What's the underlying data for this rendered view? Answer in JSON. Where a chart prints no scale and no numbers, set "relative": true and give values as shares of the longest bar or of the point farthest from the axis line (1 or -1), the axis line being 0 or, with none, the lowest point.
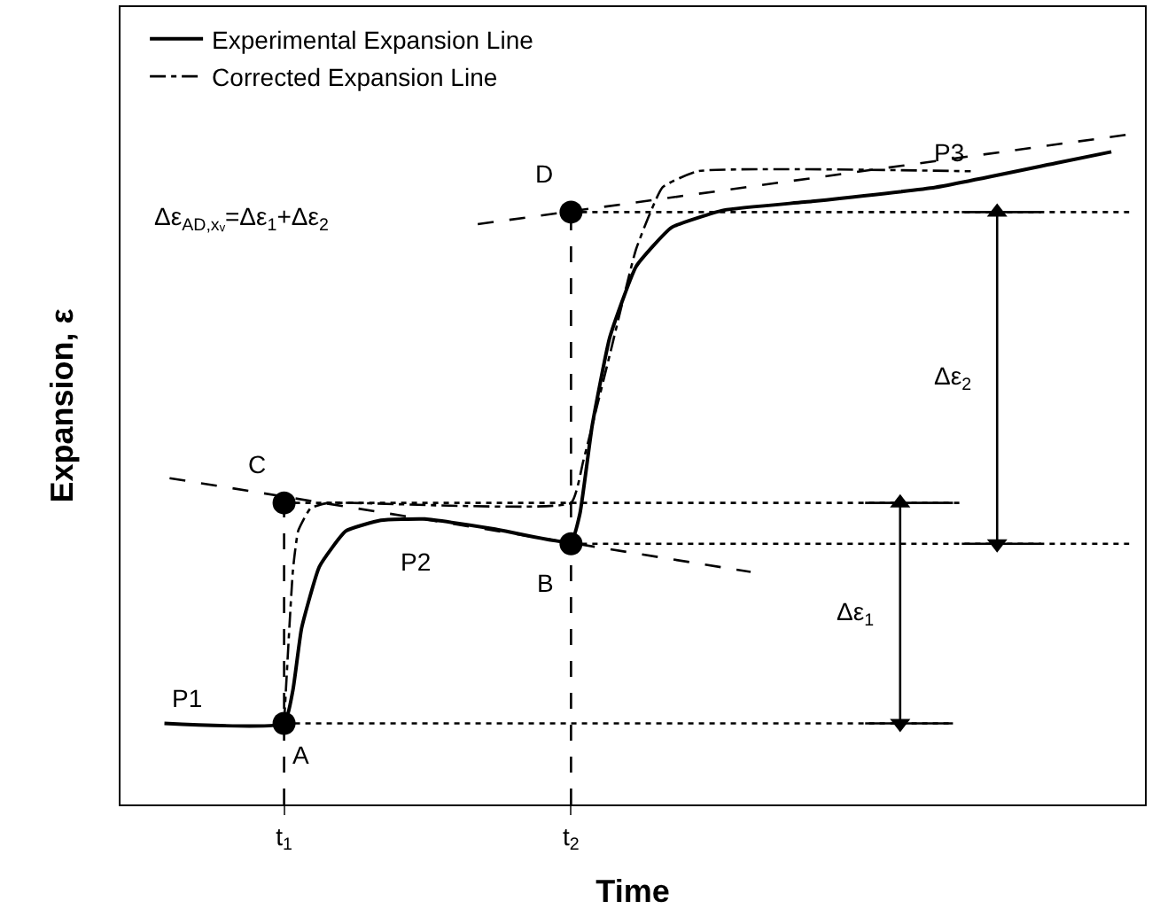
{
  "chart_data": {
    "type": "line",
    "relative": true,
    "xlabel": "Time",
    "ylabel": "Expansion, ε",
    "xlim": [
      0.43,
      4.0
    ],
    "xticks": [
      {
        "value": 1,
        "label": "t$_{1}$"
      },
      {
        "value": 2,
        "label": "t$_{2}$"
      }
    ],
    "tick_labels": "x",
    "legend": "top left",
    "series": [
      {
        "name": "Experimental Expansion Line",
        "color": "#000000",
        "line_style": "solid",
        "x": [
          0.583,
          1.0,
          1.031,
          1.061,
          1.123,
          1.215,
          1.337,
          1.491,
          1.736,
          2.0,
          2.031,
          2.074,
          2.135,
          2.227,
          2.35,
          2.534,
          2.84,
          3.27,
          3.699,
          3.883
        ],
        "values": [
          0.121,
          0.121,
          0.171,
          0.263,
          0.355,
          0.408,
          0.424,
          0.426,
          0.411,
          0.392,
          0.434,
          0.566,
          0.697,
          0.803,
          0.861,
          0.887,
          0.9,
          0.921,
          0.958,
          0.974
        ]
      },
      {
        "name": "Corrected Expansion Line",
        "color": "#000000",
        "line_style": "dashdot",
        "x": [
          1.0,
          1.031,
          1.049,
          1.092,
          1.153,
          2.0,
          2.043,
          2.135,
          2.227,
          2.319,
          2.442,
          3.393
        ],
        "values": [
          0.121,
          0.35,
          0.408,
          0.442,
          0.45,
          0.45,
          0.513,
          0.671,
          0.829,
          0.921,
          0.945,
          0.945
        ]
      },
      {
        "color": "#000000",
        "line_style": "dashed",
        "x": [
          0.601,
          2.626
        ],
        "values": [
          0.487,
          0.347
        ]
      },
      {
        "color": "#000000",
        "line_style": "dashed",
        "x": [
          1.675,
          3.945
        ],
        "values": [
          0.866,
          1.0
        ]
      },
      {
        "color": "#000000",
        "line_style": "dashed",
        "x": [
          1.0,
          1.0
        ],
        "values": [
          0,
          0.45
        ]
      },
      {
        "color": "#000000",
        "line_style": "dashed",
        "x": [
          2.0,
          2.0
        ],
        "values": [
          0,
          0.884
        ]
      },
      {
        "color": "#000000",
        "line_style": "dotted",
        "x": [
          1.0,
          3.331
        ],
        "values": [
          0.121,
          0.121
        ]
      },
      {
        "color": "#000000",
        "line_style": "dotted",
        "x": [
          1.0,
          3.362
        ],
        "values": [
          0.45,
          0.45
        ]
      },
      {
        "color": "#000000",
        "line_style": "dotted",
        "x": [
          2.0,
          3.945
        ],
        "values": [
          0.389,
          0.389
        ]
      },
      {
        "color": "#000000",
        "line_style": "dotted",
        "x": [
          2.0,
          3.945
        ],
        "values": [
          0.884,
          0.884
        ]
      },
      {
        "color": "#000000",
        "line_style": "solid",
        "x": [
          3.025,
          3.331
        ],
        "values": [
          0.121,
          0.121
        ]
      },
      {
        "color": "#000000",
        "line_style": "solid",
        "x": [
          3.025,
          3.331
        ],
        "values": [
          0.45,
          0.45
        ]
      },
      {
        "color": "#000000",
        "line_style": "solid",
        "x": [
          3.362,
          3.638
        ],
        "values": [
          0.389,
          0.389
        ]
      },
      {
        "color": "#000000",
        "line_style": "solid",
        "x": [
          3.362,
          3.638
        ],
        "values": [
          0.884,
          0.884
        ]
      },
      {
        "color": "#000000",
        "line_style": "solid",
        "marker": "triangle",
        "x": [
          3.147,
          3.147
        ],
        "values": [
          0.121,
          0.45
        ]
      },
      {
        "color": "#000000",
        "line_style": "solid",
        "marker": "triangle",
        "x": [
          3.485,
          3.485
        ],
        "values": [
          0.389,
          0.884
        ]
      },
      {
        "type": "scatter",
        "color": "#000000",
        "marker": "circle",
        "x": [
          1.0,
          2.0,
          1.0,
          2.0
        ],
        "values": [
          0.121,
          0.389,
          0.45,
          0.884
        ]
      }
    ],
    "annotations": [
      "Δε$_{AD,xᵥ}$=Δε$_{1}$+Δε$_{2}$",
      {
        "text": "P1",
        "x": 0.663,
        "y": 0.121
      },
      {
        "text": "P2",
        "x": 1.736,
        "y": 0.411
      },
      {
        "text": "P3",
        "x": 3.27,
        "y": 0.921
      },
      {
        "text": "A",
        "x": 1.0,
        "y": 0.121
      },
      {
        "text": "B",
        "x": 2.0,
        "y": 0.389
      },
      {
        "text": "C",
        "x": 1.0,
        "y": 0.45
      },
      {
        "text": "D",
        "x": 2.0,
        "y": 0.884
      },
      {
        "text": "Δε$_{1}$",
        "x": 3.147,
        "y": 0.285
      },
      {
        "text": "Δε$_{2}$",
        "x": 3.485,
        "y": 0.636
      }
    ]
  }
}
